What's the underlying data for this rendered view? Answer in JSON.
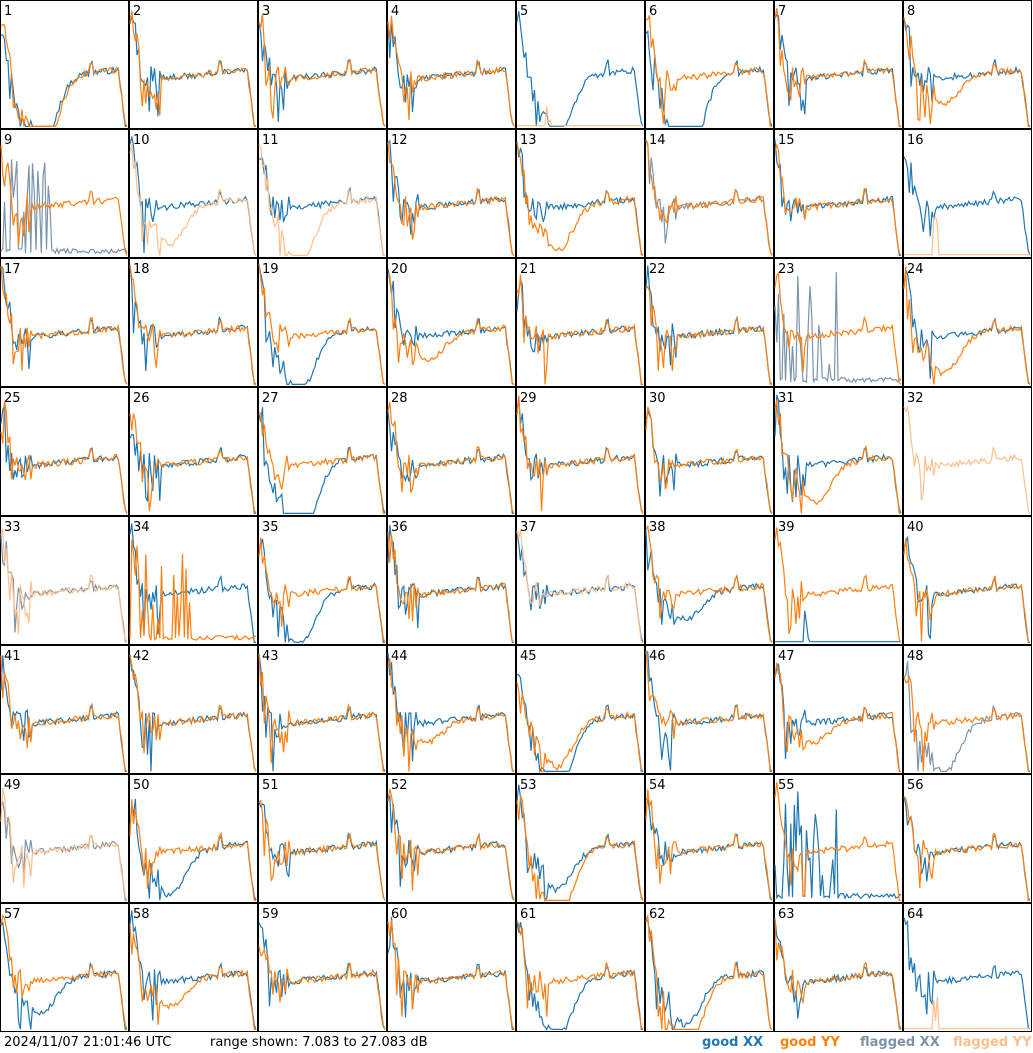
{
  "footer": {
    "timestamp": "2024/11/07 21:01:46 UTC",
    "range": "range shown: 7.083 to 27.083 dB"
  },
  "colors": {
    "good_xx": "#1f77b4",
    "good_yy": "#ff7f0e",
    "flagged_xx": "#7a94ad",
    "flagged_yy": "#ffbf8c"
  },
  "chart_data": {
    "type": "line",
    "description_units": "dB",
    "ylim": [
      7.083,
      27.083
    ],
    "grid": "8x8 small multiples, no axes",
    "legend": [
      {
        "key": "good_xx",
        "label": "good XX"
      },
      {
        "key": "good_yy",
        "label": "good YY"
      },
      {
        "key": "flagged_xx",
        "label": "flagged XX"
      },
      {
        "key": "flagged_yy",
        "label": "flagged YY"
      }
    ],
    "panels": [
      {
        "label": "1",
        "xx": {
          "style": "sag",
          "lvl": 0.55,
          "state": "good"
        },
        "yy": {
          "style": "sag",
          "lvl": 0.7,
          "state": "good"
        }
      },
      {
        "label": "2",
        "xx": {
          "style": "normal",
          "state": "good"
        },
        "yy": {
          "style": "normal",
          "state": "good"
        }
      },
      {
        "label": "3",
        "xx": {
          "style": "normal",
          "state": "good"
        },
        "yy": {
          "style": "normal",
          "state": "good"
        }
      },
      {
        "label": "4",
        "xx": {
          "style": "normal",
          "state": "good"
        },
        "yy": {
          "style": "normal",
          "state": "good"
        }
      },
      {
        "label": "5",
        "xx": {
          "style": "sag",
          "lvl": 0.45,
          "state": "good"
        },
        "yy": {
          "style": "flat",
          "state": "flagged"
        }
      },
      {
        "label": "6",
        "xx": {
          "style": "sag",
          "lvl": 0.75,
          "state": "good"
        },
        "yy": {
          "style": "normal",
          "state": "good"
        }
      },
      {
        "label": "7",
        "xx": {
          "style": "normal",
          "state": "good"
        },
        "yy": {
          "style": "normal",
          "state": "good"
        }
      },
      {
        "label": "8",
        "xx": {
          "style": "normal",
          "state": "good"
        },
        "yy": {
          "style": "sag",
          "lvl": 0.2,
          "state": "good"
        }
      },
      {
        "label": "9",
        "xx": {
          "style": "spikes",
          "state": "flagged"
        },
        "yy": {
          "style": "normal",
          "state": "good"
        }
      },
      {
        "label": "10",
        "xx": {
          "style": "normal",
          "state": "good"
        },
        "yy": {
          "style": "sag",
          "lvl": 0.3,
          "state": "flagged"
        }
      },
      {
        "label": "11",
        "xx": {
          "style": "normal",
          "state": "good"
        },
        "yy": {
          "style": "sag",
          "lvl": 0.45,
          "state": "flagged"
        }
      },
      {
        "label": "12",
        "xx": {
          "style": "normal",
          "state": "good"
        },
        "yy": {
          "style": "normal",
          "state": "good"
        }
      },
      {
        "label": "13",
        "xx": {
          "style": "normal",
          "state": "good"
        },
        "yy": {
          "style": "sag",
          "lvl": 0.35,
          "state": "good"
        }
      },
      {
        "label": "14",
        "xx": {
          "style": "normal",
          "state": "flagged"
        },
        "yy": {
          "style": "normal",
          "state": "good"
        }
      },
      {
        "label": "15",
        "xx": {
          "style": "normal",
          "state": "good"
        },
        "yy": {
          "style": "normal",
          "state": "good"
        }
      },
      {
        "label": "16",
        "xx": {
          "style": "normal",
          "state": "good"
        },
        "yy": {
          "style": "flat",
          "state": "flagged"
        }
      },
      {
        "label": "17",
        "xx": {
          "style": "normal",
          "state": "good"
        },
        "yy": {
          "style": "normal",
          "state": "good"
        }
      },
      {
        "label": "18",
        "xx": {
          "style": "normal",
          "state": "good"
        },
        "yy": {
          "style": "normal",
          "state": "good"
        }
      },
      {
        "label": "19",
        "xx": {
          "style": "sag",
          "lvl": 0.45,
          "state": "good"
        },
        "yy": {
          "style": "normal",
          "state": "good"
        }
      },
      {
        "label": "20",
        "xx": {
          "style": "normal",
          "state": "good"
        },
        "yy": {
          "style": "sag",
          "lvl": 0.2,
          "state": "good"
        }
      },
      {
        "label": "21",
        "xx": {
          "style": "normal",
          "state": "good"
        },
        "yy": {
          "style": "normal",
          "state": "good"
        }
      },
      {
        "label": "22",
        "xx": {
          "style": "normal",
          "state": "good"
        },
        "yy": {
          "style": "normal",
          "state": "good"
        }
      },
      {
        "label": "23",
        "xx": {
          "style": "spikes",
          "state": "flagged"
        },
        "yy": {
          "style": "normal",
          "state": "good"
        }
      },
      {
        "label": "24",
        "xx": {
          "style": "normal",
          "state": "good"
        },
        "yy": {
          "style": "sag",
          "lvl": 0.3,
          "state": "good"
        }
      },
      {
        "label": "25",
        "xx": {
          "style": "normal",
          "state": "good"
        },
        "yy": {
          "style": "normal",
          "state": "good"
        }
      },
      {
        "label": "26",
        "xx": {
          "style": "normal",
          "state": "good"
        },
        "yy": {
          "style": "normal",
          "state": "good"
        }
      },
      {
        "label": "27",
        "xx": {
          "style": "sag",
          "lvl": 0.65,
          "state": "good"
        },
        "yy": {
          "style": "normal",
          "state": "good"
        }
      },
      {
        "label": "28",
        "xx": {
          "style": "normal",
          "state": "good"
        },
        "yy": {
          "style": "normal",
          "state": "good"
        }
      },
      {
        "label": "29",
        "xx": {
          "style": "normal",
          "state": "good"
        },
        "yy": {
          "style": "normal",
          "state": "good"
        }
      },
      {
        "label": "30",
        "xx": {
          "style": "normal",
          "state": "good"
        },
        "yy": {
          "style": "normal",
          "state": "good"
        }
      },
      {
        "label": "31",
        "xx": {
          "style": "normal",
          "state": "good"
        },
        "yy": {
          "style": "sag",
          "lvl": 0.3,
          "state": "good"
        }
      },
      {
        "label": "32",
        "xx": {
          "style": "none",
          "state": "good"
        },
        "yy": {
          "style": "normal",
          "state": "flagged"
        }
      },
      {
        "label": "33",
        "xx": {
          "style": "normal",
          "state": "flagged"
        },
        "yy": {
          "style": "normal",
          "state": "flagged"
        }
      },
      {
        "label": "34",
        "xx": {
          "style": "normal",
          "state": "good"
        },
        "yy": {
          "style": "spikes",
          "state": "good"
        }
      },
      {
        "label": "35",
        "xx": {
          "style": "sag",
          "lvl": 0.4,
          "state": "good"
        },
        "yy": {
          "style": "normal",
          "state": "good"
        }
      },
      {
        "label": "36",
        "xx": {
          "style": "normal",
          "state": "good"
        },
        "yy": {
          "style": "normal",
          "state": "good"
        }
      },
      {
        "label": "37",
        "xx": {
          "style": "normal",
          "state": "good"
        },
        "yy": {
          "style": "normal",
          "state": "flagged"
        }
      },
      {
        "label": "38",
        "xx": {
          "style": "sag",
          "lvl": 0.2,
          "state": "good"
        },
        "yy": {
          "style": "normal",
          "state": "good"
        }
      },
      {
        "label": "39",
        "xx": {
          "style": "flat",
          "state": "good"
        },
        "yy": {
          "style": "normal",
          "state": "good"
        }
      },
      {
        "label": "40",
        "xx": {
          "style": "normal",
          "state": "good"
        },
        "yy": {
          "style": "normal",
          "state": "good"
        }
      },
      {
        "label": "41",
        "xx": {
          "style": "normal",
          "state": "good"
        },
        "yy": {
          "style": "normal",
          "state": "good"
        }
      },
      {
        "label": "42",
        "xx": {
          "style": "normal",
          "state": "good"
        },
        "yy": {
          "style": "normal",
          "state": "good"
        }
      },
      {
        "label": "43",
        "xx": {
          "style": "normal",
          "state": "good"
        },
        "yy": {
          "style": "normal",
          "state": "good"
        }
      },
      {
        "label": "44",
        "xx": {
          "style": "normal",
          "state": "good"
        },
        "yy": {
          "style": "sag",
          "lvl": 0.15,
          "state": "good"
        }
      },
      {
        "label": "45",
        "xx": {
          "style": "sag",
          "lvl": 0.55,
          "state": "good"
        },
        "yy": {
          "style": "sag",
          "lvl": 0.35,
          "state": "good"
        }
      },
      {
        "label": "46",
        "xx": {
          "style": "normal",
          "state": "good"
        },
        "yy": {
          "style": "normal",
          "state": "good"
        }
      },
      {
        "label": "47",
        "xx": {
          "style": "normal",
          "state": "good"
        },
        "yy": {
          "style": "sag",
          "lvl": 0.15,
          "state": "good"
        }
      },
      {
        "label": "48",
        "xx": {
          "style": "sag",
          "lvl": 0.4,
          "state": "flagged"
        },
        "yy": {
          "style": "normal",
          "state": "good"
        }
      },
      {
        "label": "49",
        "xx": {
          "style": "normal",
          "state": "flagged"
        },
        "yy": {
          "style": "normal",
          "state": "flagged"
        }
      },
      {
        "label": "50",
        "xx": {
          "style": "sag",
          "lvl": 0.35,
          "state": "good"
        },
        "yy": {
          "style": "normal",
          "state": "good"
        }
      },
      {
        "label": "51",
        "xx": {
          "style": "normal",
          "state": "good"
        },
        "yy": {
          "style": "normal",
          "state": "good"
        }
      },
      {
        "label": "52",
        "xx": {
          "style": "normal",
          "state": "good"
        },
        "yy": {
          "style": "normal",
          "state": "good"
        }
      },
      {
        "label": "53",
        "xx": {
          "style": "sag",
          "lvl": 0.3,
          "state": "good"
        },
        "yy": {
          "style": "sag",
          "lvl": 0.55,
          "state": "good"
        }
      },
      {
        "label": "54",
        "xx": {
          "style": "normal",
          "state": "good"
        },
        "yy": {
          "style": "normal",
          "state": "good"
        }
      },
      {
        "label": "55",
        "xx": {
          "style": "spikes",
          "state": "good"
        },
        "yy": {
          "style": "normal",
          "state": "good"
        }
      },
      {
        "label": "56",
        "xx": {
          "style": "normal",
          "state": "good"
        },
        "yy": {
          "style": "normal",
          "state": "good"
        }
      },
      {
        "label": "57",
        "xx": {
          "style": "sag",
          "lvl": 0.25,
          "state": "good"
        },
        "yy": {
          "style": "normal",
          "state": "good"
        }
      },
      {
        "label": "58",
        "xx": {
          "style": "normal",
          "state": "good"
        },
        "yy": {
          "style": "sag",
          "lvl": 0.2,
          "state": "good"
        }
      },
      {
        "label": "59",
        "xx": {
          "style": "normal",
          "state": "good"
        },
        "yy": {
          "style": "normal",
          "state": "good"
        }
      },
      {
        "label": "60",
        "xx": {
          "style": "normal",
          "state": "good"
        },
        "yy": {
          "style": "normal",
          "state": "good"
        }
      },
      {
        "label": "61",
        "xx": {
          "style": "sag",
          "lvl": 0.45,
          "state": "good"
        },
        "yy": {
          "style": "normal",
          "state": "good"
        }
      },
      {
        "label": "62",
        "xx": {
          "style": "sag",
          "lvl": 0.35,
          "state": "good"
        },
        "yy": {
          "style": "sag",
          "lvl": 0.6,
          "state": "good"
        }
      },
      {
        "label": "63",
        "xx": {
          "style": "normal",
          "state": "good"
        },
        "yy": {
          "style": "normal",
          "state": "good"
        }
      },
      {
        "label": "64",
        "xx": {
          "style": "normal",
          "state": "good"
        },
        "yy": {
          "style": "flat",
          "state": "flagged"
        }
      }
    ]
  }
}
